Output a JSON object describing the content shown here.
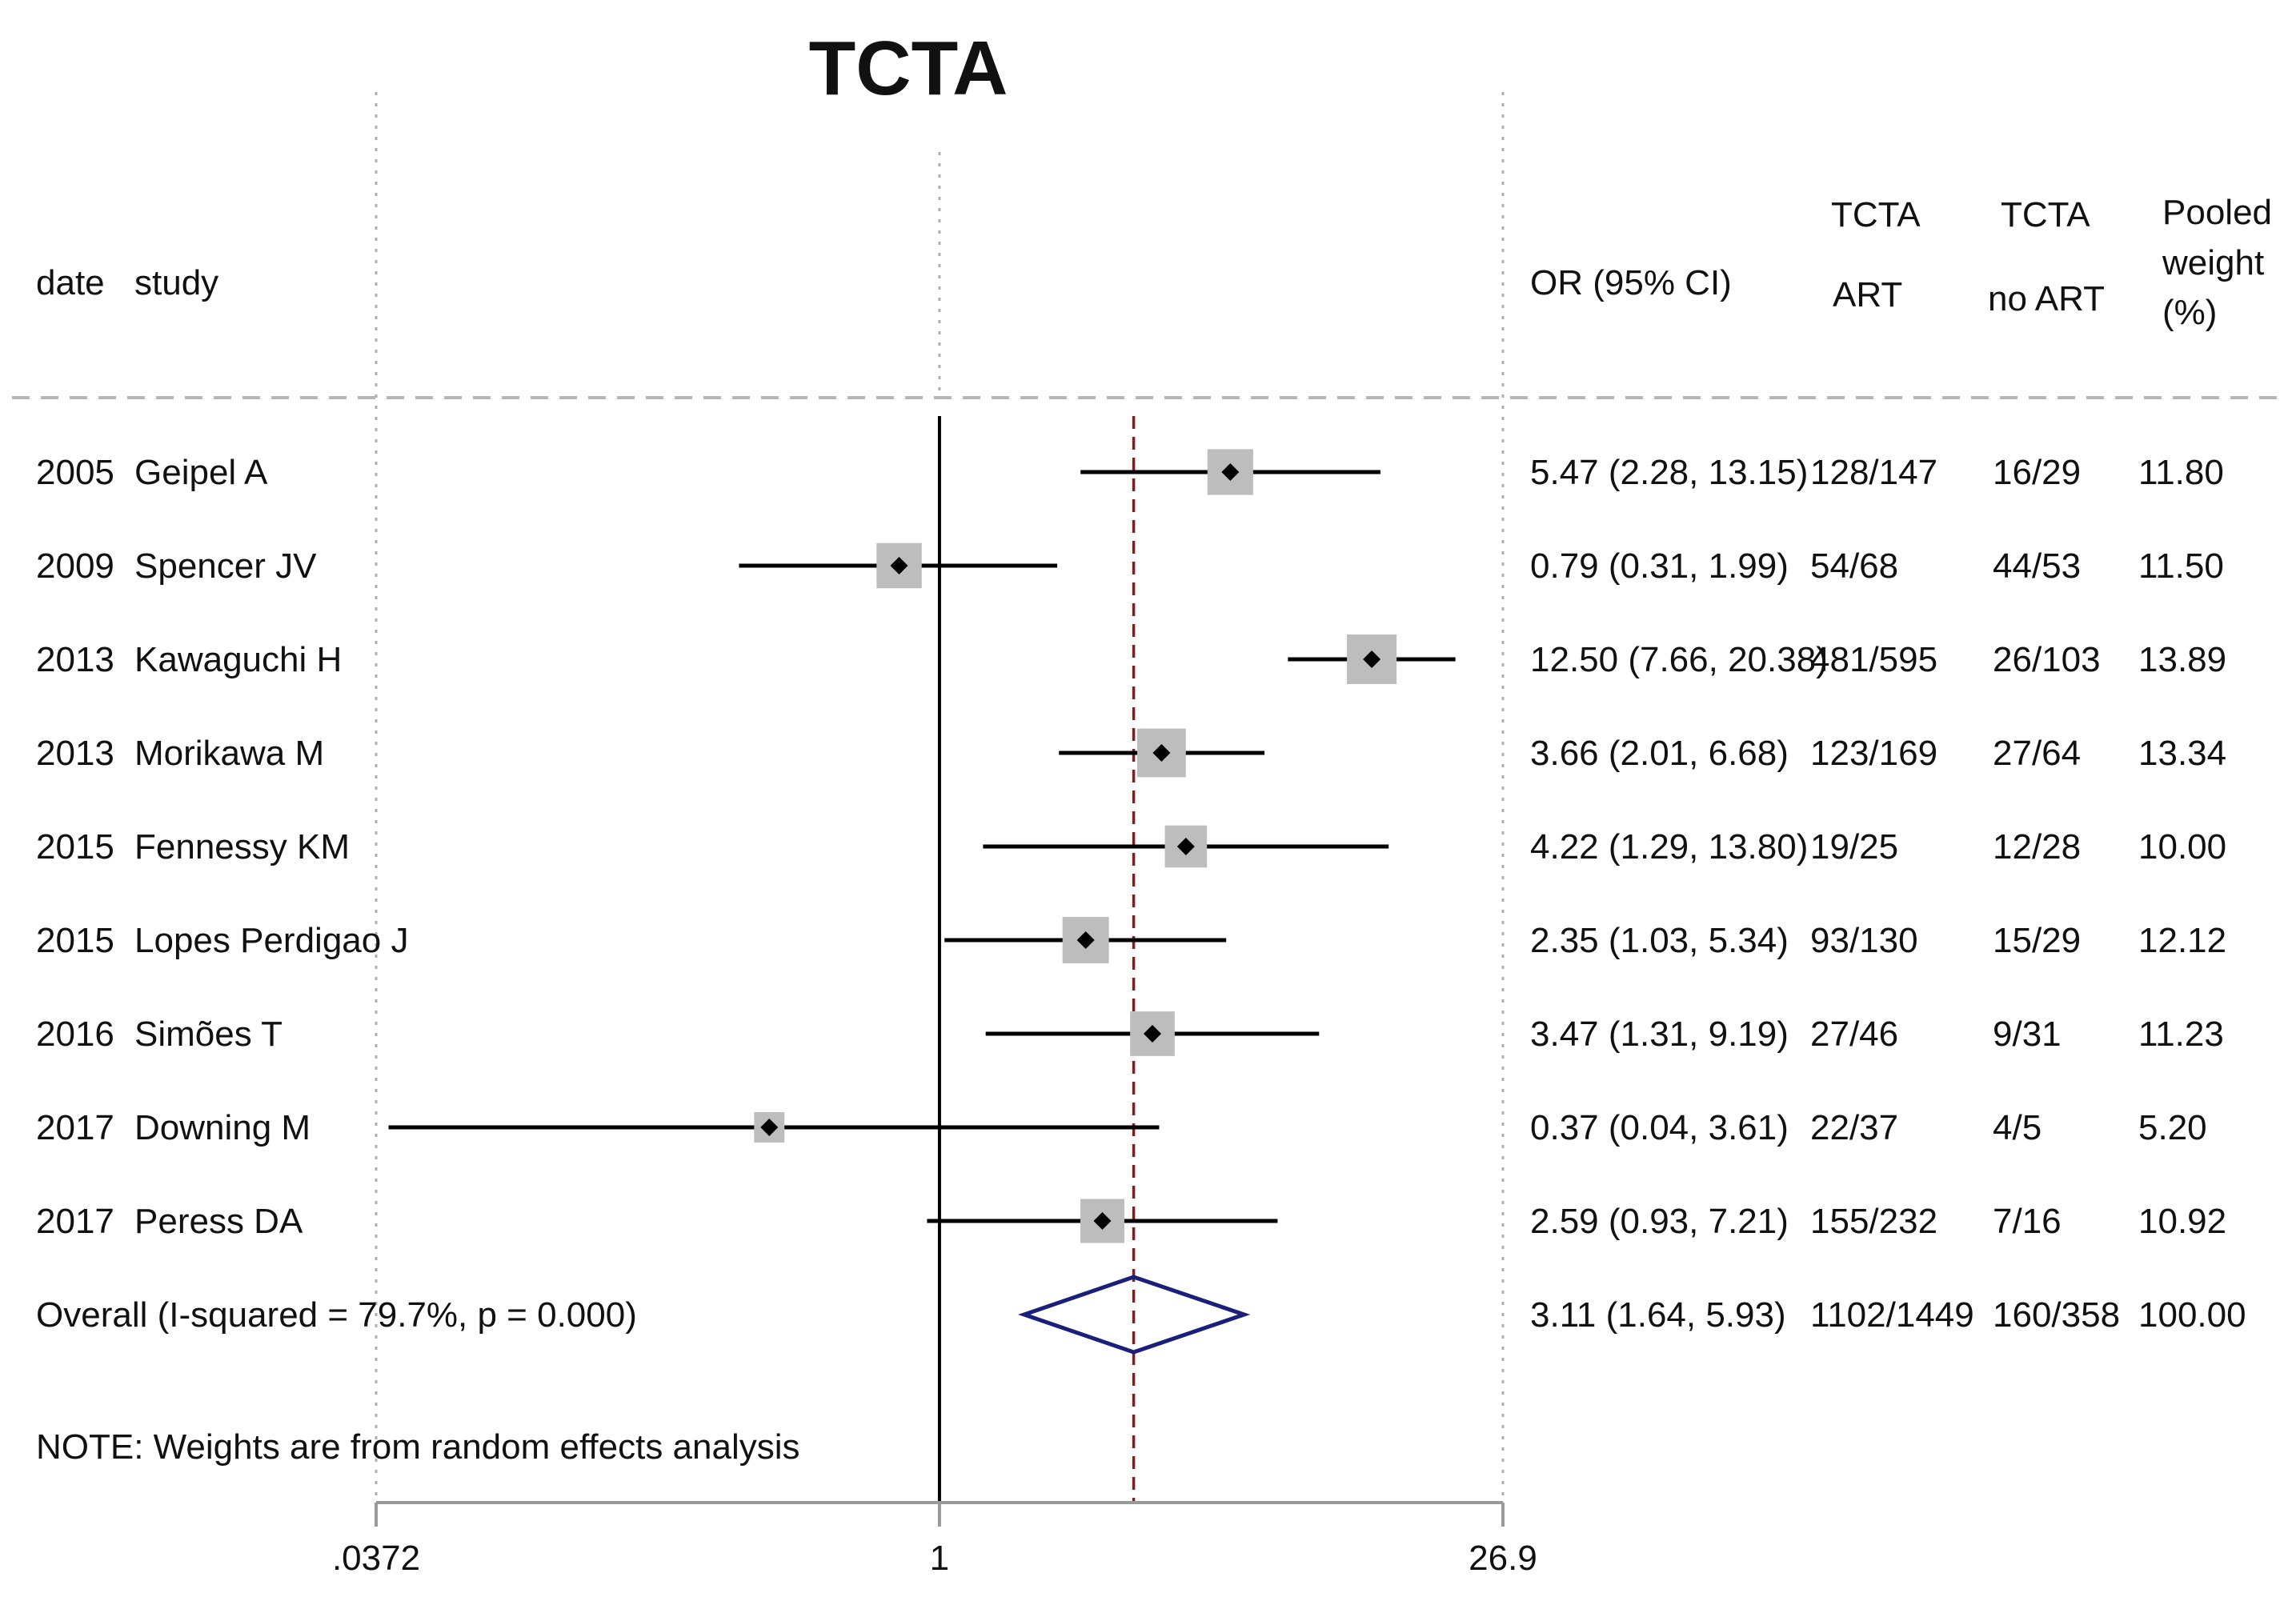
{
  "chart_data": {
    "type": "forest",
    "title": "TCTA",
    "headers": {
      "date": "date",
      "study": "study",
      "or": "OR (95% CI)",
      "art": [
        "TCTA",
        "ART"
      ],
      "no_art": [
        "TCTA",
        "no ART"
      ],
      "weight": [
        "Pooled",
        "weight",
        "(%)"
      ]
    },
    "x_scale": "log",
    "x_range": [
      0.0372,
      26.9
    ],
    "x_ticks": [
      {
        "value": 0.0372,
        "label": ".0372"
      },
      {
        "value": 1,
        "label": "1"
      },
      {
        "value": 26.9,
        "label": "26.9"
      }
    ],
    "null_line": 1,
    "pooled_line": 3.11,
    "studies": [
      {
        "date": "2005",
        "study": "Geipel A",
        "or": 5.47,
        "lo": 2.28,
        "hi": 13.15,
        "or_text": "5.47 (2.28, 13.15)",
        "art": "128/147",
        "no_art": "16/29",
        "weight": "11.80",
        "weight_value": 11.8
      },
      {
        "date": "2009",
        "study": "Spencer JV",
        "or": 0.79,
        "lo": 0.31,
        "hi": 1.99,
        "or_text": "0.79 (0.31, 1.99)",
        "art": "54/68",
        "no_art": "44/53",
        "weight": "11.50",
        "weight_value": 11.5
      },
      {
        "date": "2013",
        "study": "Kawaguchi H",
        "or": 12.5,
        "lo": 7.66,
        "hi": 20.38,
        "or_text": "12.50 (7.66, 20.38)",
        "art": "481/595",
        "no_art": "26/103",
        "weight": "13.89",
        "weight_value": 13.89
      },
      {
        "date": "2013",
        "study": "Morikawa M",
        "or": 3.66,
        "lo": 2.01,
        "hi": 6.68,
        "or_text": "3.66 (2.01, 6.68)",
        "art": "123/169",
        "no_art": "27/64",
        "weight": "13.34",
        "weight_value": 13.34
      },
      {
        "date": "2015",
        "study": "Fennessy KM",
        "or": 4.22,
        "lo": 1.29,
        "hi": 13.8,
        "or_text": "4.22 (1.29, 13.80)",
        "art": "19/25",
        "no_art": "12/28",
        "weight": "10.00",
        "weight_value": 10.0
      },
      {
        "date": "2015",
        "study": "Lopes Perdigao J",
        "or": 2.35,
        "lo": 1.03,
        "hi": 5.34,
        "or_text": "2.35 (1.03, 5.34)",
        "art": "93/130",
        "no_art": "15/29",
        "weight": "12.12",
        "weight_value": 12.12
      },
      {
        "date": "2016",
        "study": "Simões T",
        "or": 3.47,
        "lo": 1.31,
        "hi": 9.19,
        "or_text": "3.47 (1.31, 9.19)",
        "art": "27/46",
        "no_art": "9/31",
        "weight": "11.23",
        "weight_value": 11.23
      },
      {
        "date": "2017",
        "study": "Downing M",
        "or": 0.37,
        "lo": 0.04,
        "hi": 3.61,
        "or_text": "0.37 (0.04, 3.61)",
        "art": "22/37",
        "no_art": "4/5",
        "weight": "5.20",
        "weight_value": 5.2
      },
      {
        "date": "2017",
        "study": "Peress DA",
        "or": 2.59,
        "lo": 0.93,
        "hi": 7.21,
        "or_text": "2.59 (0.93, 7.21)",
        "art": "155/232",
        "no_art": "7/16",
        "weight": "10.92",
        "weight_value": 10.92
      }
    ],
    "overall": {
      "label": "Overall  (I-squared = 79.7%, p = 0.000)",
      "or": 3.11,
      "lo": 1.64,
      "hi": 5.93,
      "or_text": "3.11 (1.64, 5.93)",
      "art": "1102/1449",
      "no_art": "160/358",
      "weight": "100.00"
    },
    "note": "NOTE: Weights are from random effects analysis"
  },
  "colors": {
    "text": "#111111",
    "axis": "#999999",
    "box": "#bdbdbd",
    "point": "#000000",
    "ci": "#000000",
    "pooled_line": "#8b1a1a",
    "diamond": "#1a1f7a",
    "dotted": "#b0b0b0",
    "dashed": "#b5b5b5"
  }
}
